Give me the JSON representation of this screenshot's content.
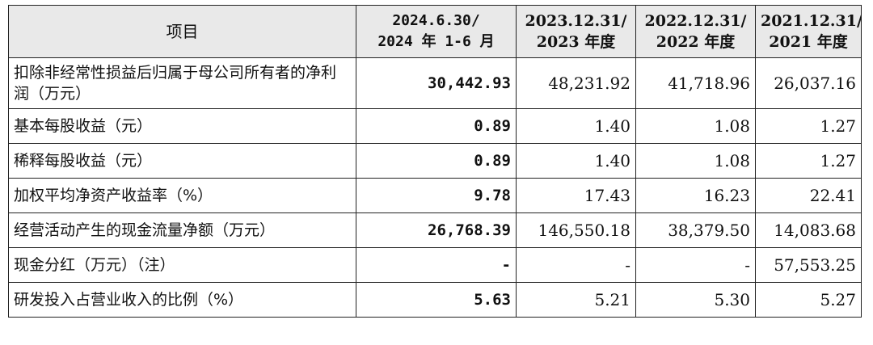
{
  "table": {
    "headers": [
      [
        "项目"
      ],
      [
        "2024.6.30/",
        "2024 年 1-6 月"
      ],
      [
        "2023.12.31/",
        "2023 年度"
      ],
      [
        "2022.12.31/",
        "2022 年度"
      ],
      [
        "2021.12.31/",
        "2021 年度"
      ]
    ],
    "rows": [
      {
        "label": "扣除非经常性损益后归属于母公司所有者的净利润（万元）",
        "values": [
          "30,442.93",
          "48,231.92",
          "41,718.96",
          "26,037.16"
        ]
      },
      {
        "label": "基本每股收益（元）",
        "values": [
          "0.89",
          "1.40",
          "1.08",
          "1.27"
        ]
      },
      {
        "label": "稀释每股收益（元）",
        "values": [
          "0.89",
          "1.40",
          "1.08",
          "1.27"
        ]
      },
      {
        "label": "加权平均净资产收益率（%）",
        "values": [
          "9.78",
          "17.43",
          "16.23",
          "22.41"
        ]
      },
      {
        "label": "经营活动产生的现金流量净额（万元）",
        "values": [
          "26,768.39",
          "146,550.18",
          "38,379.50",
          "14,083.68"
        ]
      },
      {
        "label": "现金分红（万元）（注）",
        "values": [
          "-",
          "-",
          "-",
          "57,553.25"
        ]
      },
      {
        "label": "研发投入占营业收入的比例（%）",
        "values": [
          "5.63",
          "5.21",
          "5.30",
          "5.27"
        ]
      }
    ]
  }
}
